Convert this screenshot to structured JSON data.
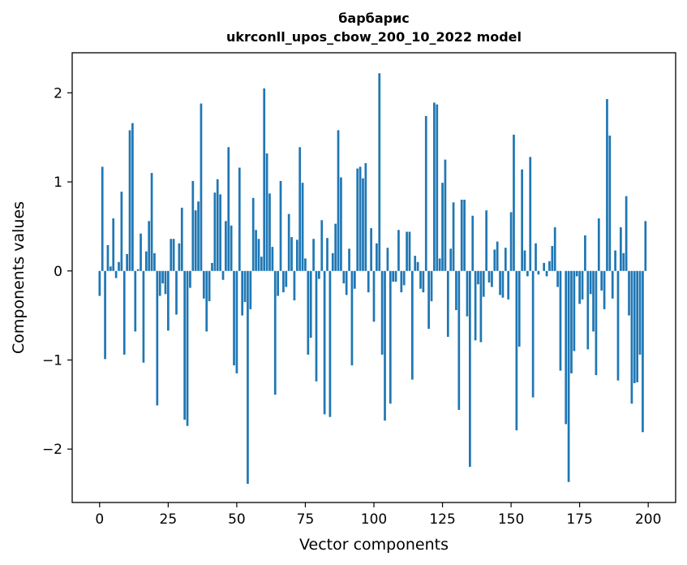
{
  "chart_data": {
    "type": "bar",
    "title": "барбарис",
    "subtitle": "ukrconll_upos_cbow_200_10_2022 model",
    "xlabel": "Vector components",
    "ylabel": "Components values",
    "xlim": [
      -10,
      210
    ],
    "ylim": [
      -2.6,
      2.45
    ],
    "xticks": [
      0,
      25,
      50,
      75,
      100,
      125,
      150,
      175,
      200
    ],
    "xtick_labels": [
      "0",
      "25",
      "50",
      "75",
      "100",
      "125",
      "150",
      "175",
      "200"
    ],
    "yticks": [
      -2,
      -1,
      0,
      1,
      2
    ],
    "ytick_labels": [
      "−2",
      "−1",
      "0",
      "1",
      "2"
    ],
    "grid": false,
    "legend": "none",
    "bar_color": "#1f77b4",
    "x": [
      0,
      1,
      2,
      3,
      4,
      5,
      6,
      7,
      8,
      9,
      10,
      11,
      12,
      13,
      14,
      15,
      16,
      17,
      18,
      19,
      20,
      21,
      22,
      23,
      24,
      25,
      26,
      27,
      28,
      29,
      30,
      31,
      32,
      33,
      34,
      35,
      36,
      37,
      38,
      39,
      40,
      41,
      42,
      43,
      44,
      45,
      46,
      47,
      48,
      49,
      50,
      51,
      52,
      53,
      54,
      55,
      56,
      57,
      58,
      59,
      60,
      61,
      62,
      63,
      64,
      65,
      66,
      67,
      68,
      69,
      70,
      71,
      72,
      73,
      74,
      75,
      76,
      77,
      78,
      79,
      80,
      81,
      82,
      83,
      84,
      85,
      86,
      87,
      88,
      89,
      90,
      91,
      92,
      93,
      94,
      95,
      96,
      97,
      98,
      99,
      100,
      101,
      102,
      103,
      104,
      105,
      106,
      107,
      108,
      109,
      110,
      111,
      112,
      113,
      114,
      115,
      116,
      117,
      118,
      119,
      120,
      121,
      122,
      123,
      124,
      125,
      126,
      127,
      128,
      129,
      130,
      131,
      132,
      133,
      134,
      135,
      136,
      137,
      138,
      139,
      140,
      141,
      142,
      143,
      144,
      145,
      146,
      147,
      148,
      149,
      150,
      151,
      152,
      153,
      154,
      155,
      156,
      157,
      158,
      159,
      160,
      161,
      162,
      163,
      164,
      165,
      166,
      167,
      168,
      169,
      170,
      171,
      172,
      173,
      174,
      175,
      176,
      177,
      178,
      179,
      180,
      181,
      182,
      183,
      184,
      185,
      186,
      187,
      188,
      189,
      190,
      191,
      192,
      193,
      194,
      195,
      196,
      197,
      198,
      199
    ],
    "values": [
      -0.28,
      1.17,
      -0.99,
      0.29,
      0.05,
      0.59,
      -0.08,
      0.1,
      0.89,
      -0.94,
      0.19,
      1.58,
      1.66,
      -0.68,
      0.02,
      0.42,
      -1.03,
      0.22,
      0.56,
      1.1,
      0.2,
      -1.51,
      -0.28,
      -0.14,
      -0.26,
      -0.67,
      0.36,
      0.36,
      -0.49,
      0.31,
      0.71,
      -1.67,
      -1.74,
      -0.19,
      1.01,
      0.68,
      0.78,
      1.88,
      -0.31,
      -0.68,
      -0.34,
      0.09,
      0.88,
      1.03,
      0.86,
      -0.1,
      0.56,
      1.39,
      0.51,
      -1.06,
      -1.15,
      1.16,
      -0.5,
      -0.35,
      -2.39,
      -0.43,
      0.82,
      0.46,
      0.36,
      0.16,
      2.05,
      1.32,
      0.87,
      0.27,
      -1.39,
      -0.28,
      1.01,
      -0.24,
      -0.18,
      0.64,
      0.38,
      -0.33,
      0.35,
      1.39,
      0.99,
      0.14,
      -0.94,
      -0.75,
      0.36,
      -1.24,
      -0.09,
      0.57,
      -1.61,
      0.37,
      -1.64,
      0.2,
      0.53,
      1.58,
      1.05,
      -0.14,
      -0.27,
      0.25,
      -1.06,
      -0.2,
      1.15,
      1.17,
      1.04,
      1.21,
      -0.24,
      0.48,
      -0.57,
      0.31,
      2.22,
      -0.94,
      -1.68,
      0.26,
      -1.49,
      -0.12,
      -0.12,
      0.46,
      -0.24,
      -0.16,
      0.44,
      0.44,
      -1.22,
      0.17,
      0.1,
      -0.2,
      -0.24,
      1.74,
      -0.65,
      -0.34,
      1.89,
      1.87,
      0.14,
      0.99,
      1.25,
      -0.74,
      0.25,
      0.77,
      -0.44,
      -1.56,
      0.8,
      0.8,
      -0.51,
      -2.2,
      0.62,
      -0.78,
      -0.15,
      -0.8,
      -0.29,
      0.68,
      -0.13,
      -0.18,
      0.24,
      0.33,
      -0.27,
      -0.3,
      0.26,
      -0.32,
      0.66,
      1.53,
      -1.79,
      -0.85,
      1.14,
      0.23,
      -0.06,
      1.28,
      -1.42,
      0.31,
      -0.04,
      0.0,
      0.09,
      -0.06,
      0.11,
      0.28,
      0.49,
      -0.18,
      -1.12,
      0.0,
      -1.72,
      -2.37,
      -1.15,
      -0.9,
      -0.06,
      -0.37,
      -0.32,
      0.4,
      -0.88,
      -0.26,
      -0.68,
      -1.17,
      0.59,
      -0.22,
      -0.43,
      1.93,
      1.52,
      -0.31,
      0.23,
      -1.23,
      0.49,
      0.2,
      0.84,
      -0.5,
      -1.49,
      -1.26,
      -1.25,
      -0.94,
      -1.81,
      0.56
    ]
  }
}
